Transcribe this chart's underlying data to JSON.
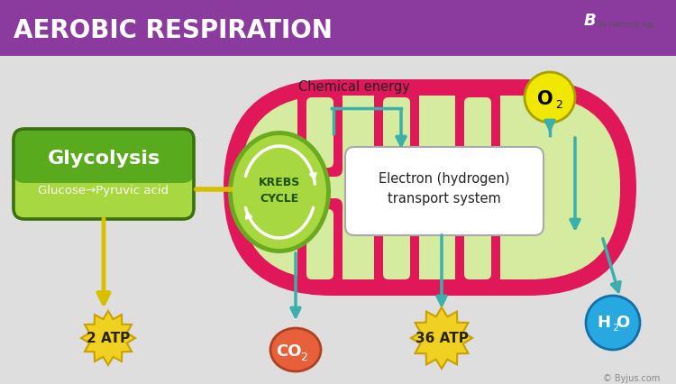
{
  "bg_color": "#dedede",
  "title_bg": "#8b3a9e",
  "title_text": "AEROBIC RESPIRATION",
  "title_color": "#ffffff",
  "mito_outer_color": "#e0185a",
  "mito_inner_color": "#d4eba0",
  "krebs_color_outer": "#7ab82e",
  "krebs_color_inner": "#a8d840",
  "glycolysis_top": "#5aaa1e",
  "glycolysis_bot": "#a8d840",
  "glycolysis_text1": "Glycolysis",
  "glycolysis_text2": "Glucose→Pyruvic acid",
  "electron_text1": "Electron (hydrogen)",
  "electron_text2": "transport system",
  "krebs_label1": "KREBS",
  "krebs_label2": "CYCLE",
  "chem_energy_text": "Chemical energy",
  "atp1_text": "2 ATP",
  "atp2_text": "36 ATP",
  "co2_color": "#e8603a",
  "o2_color": "#f0e800",
  "h2o_color": "#28a8e0",
  "atp_color": "#f0d020",
  "atp_edge": "#c8a000",
  "arrow_teal": "#3aafac",
  "arrow_yellow": "#d8c000",
  "text_dark": "#222222"
}
